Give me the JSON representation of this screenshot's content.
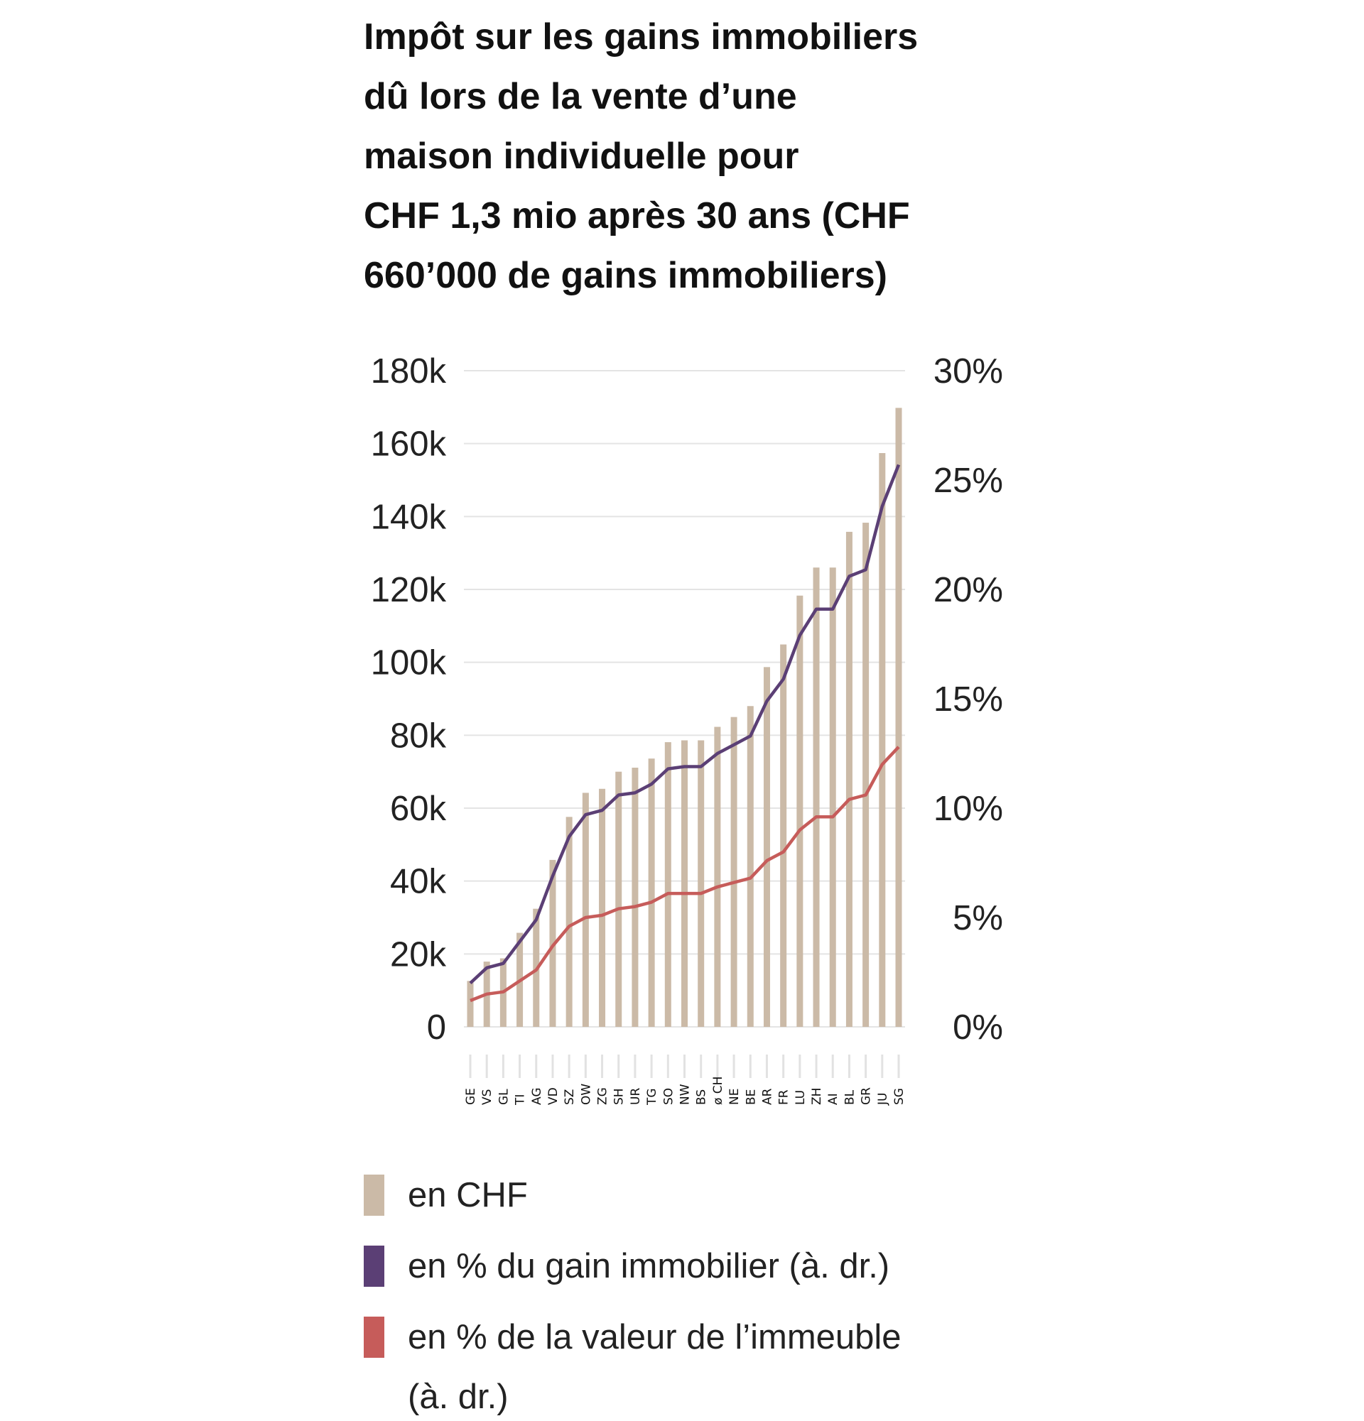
{
  "title_lines": [
    "Impôt sur les gains immobiliers",
    "dû lors de la vente d’une",
    "maison individuelle pour",
    "CHF 1,3 mio après 30 ans (CHF",
    "660’000 de gains immobiliers)"
  ],
  "legend": [
    {
      "label": "en CHF",
      "color": "#cbbaa7"
    },
    {
      "label": "en % du gain immobilier (à. dr.)",
      "color": "#5b3f75"
    },
    {
      "label_lines": [
        "en % de la valeur de l’immeuble",
        "(à. dr.)"
      ],
      "color": "#c65c5a"
    }
  ],
  "chart_data": {
    "type": "bar+line",
    "categories": [
      "GE",
      "VS",
      "GL",
      "TI",
      "AG",
      "VD",
      "SZ",
      "OW",
      "ZG",
      "SH",
      "UR",
      "TG",
      "SO",
      "NW",
      "BS",
      "ø CH",
      "NE",
      "BE",
      "AR",
      "FR",
      "LU",
      "ZH",
      "AI",
      "BL",
      "GR",
      "JU",
      "SG"
    ],
    "left_axis": {
      "ylim": [
        0,
        180000
      ],
      "ticks": [
        "0",
        "20k",
        "40k",
        "60k",
        "80k",
        "100k",
        "120k",
        "140k",
        "160k",
        "180k"
      ]
    },
    "right_axis": {
      "ylim": [
        0,
        30
      ],
      "ticks": [
        "0%",
        "5%",
        "10%",
        "15%",
        "20%",
        "25%",
        "30%"
      ]
    },
    "grid": true,
    "legend_placement": "bottom",
    "series": [
      {
        "name": "en CHF",
        "type": "bar",
        "axis": "left",
        "color": "#cbbaa7",
        "values": [
          12600,
          17900,
          18800,
          25800,
          32400,
          45800,
          57600,
          64200,
          65300,
          70000,
          71100,
          73600,
          78100,
          78600,
          78600,
          82300,
          85000,
          88000,
          98700,
          104900,
          118300,
          126000,
          126000,
          135800,
          138300,
          157400,
          169800
        ]
      },
      {
        "name": "en % du gain immobilier (à. dr.)",
        "type": "line",
        "axis": "right",
        "color": "#5b3f75",
        "values": [
          2.0,
          2.7,
          2.9,
          3.9,
          4.9,
          6.9,
          8.7,
          9.7,
          9.9,
          10.6,
          10.7,
          11.1,
          11.8,
          11.9,
          11.9,
          12.5,
          12.9,
          13.3,
          14.9,
          15.9,
          17.9,
          19.1,
          19.1,
          20.6,
          20.9,
          23.8,
          25.7
        ]
      },
      {
        "name": "en % de la valeur de l’immeuble (à. dr.)",
        "type": "line",
        "axis": "right",
        "color": "#c65c5a",
        "values": [
          1.2,
          1.5,
          1.6,
          2.1,
          2.6,
          3.7,
          4.6,
          5.0,
          5.1,
          5.4,
          5.5,
          5.7,
          6.1,
          6.1,
          6.1,
          6.4,
          6.6,
          6.8,
          7.6,
          8.0,
          9.0,
          9.6,
          9.6,
          10.4,
          10.6,
          12.0,
          12.8
        ]
      }
    ]
  }
}
